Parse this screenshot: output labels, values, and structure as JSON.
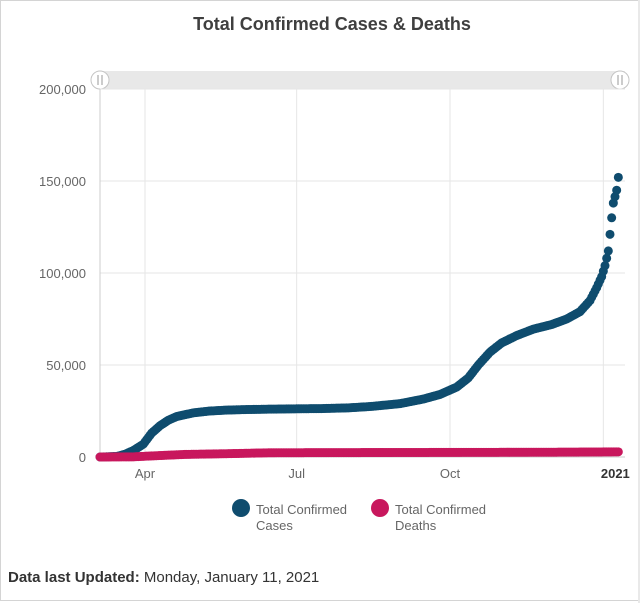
{
  "chart_data": {
    "type": "scatter",
    "title": "Total Confirmed Cases & Deaths",
    "x_tick_labels": [
      "Apr",
      "Jul",
      "Oct",
      "2021"
    ],
    "x_tick_dates": [
      "2020-04-01",
      "2020-07-01",
      "2020-10-01",
      "2021-01-01"
    ],
    "x_range": [
      "2020-03-05",
      "2021-01-11"
    ],
    "y_tick_labels": [
      "0",
      "50,000",
      "100,000",
      "150,000",
      "200,000"
    ],
    "ylim": [
      0,
      200000
    ],
    "grid": true,
    "legend_position": "bottom-center",
    "series": [
      {
        "name": "Total Confirmed Cases",
        "color": "#0f4c6e",
        "points": [
          [
            "2020-03-05",
            0
          ],
          [
            "2020-03-15",
            300
          ],
          [
            "2020-03-20",
            1500
          ],
          [
            "2020-03-25",
            3500
          ],
          [
            "2020-03-31",
            7000
          ],
          [
            "2020-04-05",
            13000
          ],
          [
            "2020-04-10",
            17000
          ],
          [
            "2020-04-15",
            20000
          ],
          [
            "2020-04-20",
            22000
          ],
          [
            "2020-04-30",
            24000
          ],
          [
            "2020-05-10",
            25000
          ],
          [
            "2020-05-20",
            25500
          ],
          [
            "2020-06-01",
            25800
          ],
          [
            "2020-06-15",
            26000
          ],
          [
            "2020-07-01",
            26200
          ],
          [
            "2020-07-15",
            26300
          ],
          [
            "2020-08-01",
            26700
          ],
          [
            "2020-08-15",
            27500
          ],
          [
            "2020-09-01",
            29000
          ],
          [
            "2020-09-15",
            31500
          ],
          [
            "2020-09-25",
            34000
          ],
          [
            "2020-10-05",
            38000
          ],
          [
            "2020-10-12",
            43000
          ],
          [
            "2020-10-18",
            50000
          ],
          [
            "2020-10-25",
            57000
          ],
          [
            "2020-11-01",
            62000
          ],
          [
            "2020-11-10",
            66000
          ],
          [
            "2020-11-20",
            69500
          ],
          [
            "2020-12-01",
            72000
          ],
          [
            "2020-12-10",
            75000
          ],
          [
            "2020-12-18",
            79000
          ],
          [
            "2020-12-24",
            85000
          ],
          [
            "2020-12-28",
            92000
          ],
          [
            "2020-12-31",
            98000
          ],
          [
            "2021-01-02",
            104000
          ],
          [
            "2021-01-04",
            112000
          ],
          [
            "2021-01-05",
            121000
          ],
          [
            "2021-01-06",
            130000
          ],
          [
            "2021-01-07",
            138000
          ],
          [
            "2021-01-09",
            145000
          ],
          [
            "2021-01-10",
            152000
          ]
        ]
      },
      {
        "name": "Total Confirmed Deaths",
        "color": "#c8175d",
        "points": [
          [
            "2020-03-05",
            0
          ],
          [
            "2020-03-25",
            100
          ],
          [
            "2020-04-10",
            800
          ],
          [
            "2020-04-25",
            1400
          ],
          [
            "2020-05-20",
            1800
          ],
          [
            "2020-06-15",
            2300
          ],
          [
            "2020-08-01",
            2400
          ],
          [
            "2020-10-01",
            2500
          ],
          [
            "2020-12-01",
            2600
          ],
          [
            "2021-01-10",
            2800
          ]
        ]
      }
    ]
  },
  "legend": [
    {
      "line1": "Total Confirmed",
      "line2": "Cases",
      "color": "#0f4c6e"
    },
    {
      "line1": "Total Confirmed",
      "line2": "Deaths",
      "color": "#c8175d"
    }
  ],
  "footer": {
    "label": "Data last Updated:",
    "value": "Monday, January 11, 2021"
  }
}
